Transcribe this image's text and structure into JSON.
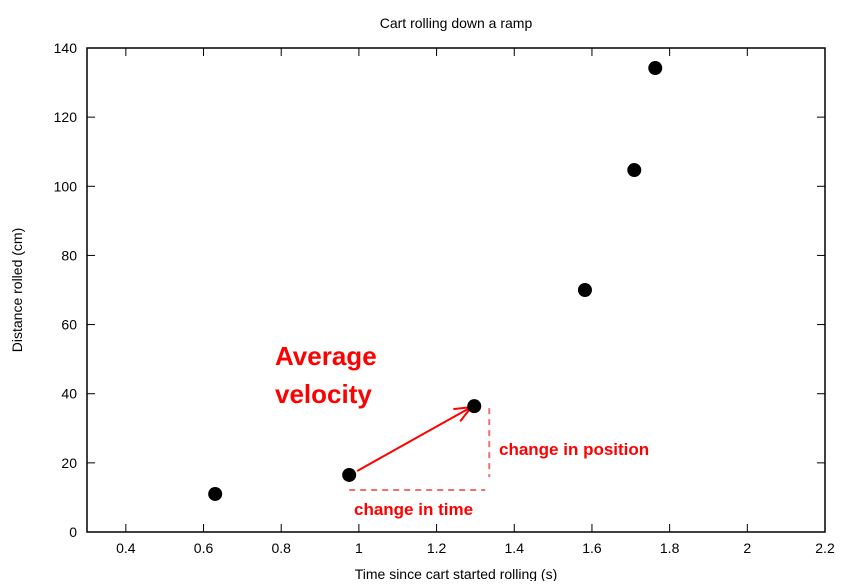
{
  "chart_data": {
    "type": "scatter",
    "title": "Cart rolling down a ramp",
    "xlabel": "Time since cart started rolling (s)",
    "ylabel": "Distance rolled (cm)",
    "xlim": [
      0.3,
      2.2
    ],
    "ylim": [
      0,
      140
    ],
    "xticks": [
      0.4,
      0.6,
      0.8,
      1,
      1.2,
      1.4,
      1.6,
      1.8,
      2,
      2.2
    ],
    "xtick_labels": [
      "0.4",
      "0.6",
      "0.8",
      "1",
      "1.2",
      "1.4",
      "1.6",
      "1.8",
      "2",
      "2.2"
    ],
    "yticks": [
      0,
      20,
      40,
      60,
      80,
      100,
      120,
      140
    ],
    "ytick_labels": [
      "0",
      "20",
      "40",
      "60",
      "80",
      "100",
      "120",
      "140"
    ],
    "grid": false,
    "point_color": "#000000",
    "points": [
      {
        "x": 0.63,
        "y": 11
      },
      {
        "x": 0.975,
        "y": 16.5
      },
      {
        "x": 1.297,
        "y": 36.4
      },
      {
        "x": 1.582,
        "y": 70
      },
      {
        "x": 1.709,
        "y": 104.7
      },
      {
        "x": 1.763,
        "y": 134.2
      }
    ],
    "annotations": {
      "color": "#ff0000",
      "dashed_color": "#f07070",
      "title_line1": "Average",
      "title_line2": "velocity",
      "change_in_position": "change in position",
      "change_in_time": "change in time",
      "arrow_from_point": 1,
      "arrow_to_point": 2
    }
  }
}
